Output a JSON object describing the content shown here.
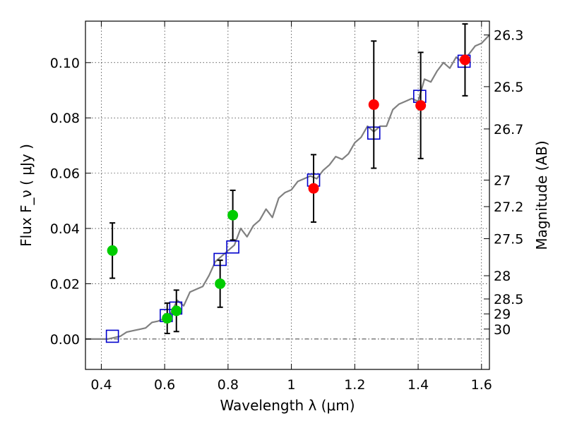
{
  "chart_data": {
    "type": "scatter",
    "title": "",
    "xlabel": "Wavelength  λ (μm)",
    "ylabel": "Flux  F_ν ( μJy )",
    "ylabel_right": "Magnitude (AB)",
    "xlim": [
      0.35,
      1.625
    ],
    "ylim": [
      -0.011,
      0.115
    ],
    "grid": true,
    "x_ticks": [
      0.4,
      0.6,
      0.8,
      1.0,
      1.2,
      1.4,
      1.6
    ],
    "x_tick_labels": [
      "0.4",
      "0.6",
      "0.8",
      "1",
      "1.2",
      "1.4",
      "1.6"
    ],
    "y_ticks": [
      0.0,
      0.02,
      0.04,
      0.06,
      0.08,
      0.1
    ],
    "y_tick_labels": [
      "0.00",
      "0.02",
      "0.04",
      "0.06",
      "0.08",
      "0.10"
    ],
    "right_ticks": [
      {
        "label": "26.3",
        "flux": 0.11
      },
      {
        "label": "26.5",
        "flux": 0.0913
      },
      {
        "label": "26.7",
        "flux": 0.076
      },
      {
        "label": "27",
        "flux": 0.0575
      },
      {
        "label": "27.2",
        "flux": 0.0479
      },
      {
        "label": "27.5",
        "flux": 0.0363
      },
      {
        "label": "28",
        "flux": 0.0229
      },
      {
        "label": "28.5",
        "flux": 0.0145
      },
      {
        "label": "29",
        "flux": 0.0091
      },
      {
        "label": "30",
        "flux": 0.0036
      }
    ],
    "series": [
      {
        "color": "#808080",
        "kind": "line",
        "x": [
          0.35,
          0.38,
          0.4,
          0.42,
          0.44,
          0.46,
          0.48,
          0.5,
          0.52,
          0.54,
          0.56,
          0.58,
          0.6,
          0.62,
          0.64,
          0.66,
          0.68,
          0.7,
          0.72,
          0.74,
          0.76,
          0.78,
          0.8,
          0.82,
          0.84,
          0.86,
          0.88,
          0.9,
          0.92,
          0.94,
          0.96,
          0.98,
          1.0,
          1.02,
          1.04,
          1.06,
          1.08,
          1.1,
          1.12,
          1.14,
          1.16,
          1.18,
          1.2,
          1.22,
          1.24,
          1.26,
          1.28,
          1.3,
          1.32,
          1.34,
          1.36,
          1.38,
          1.4,
          1.42,
          1.44,
          1.46,
          1.48,
          1.5,
          1.52,
          1.54,
          1.56,
          1.58,
          1.6,
          1.625
        ],
        "y": [
          0.0,
          0.0,
          0.0,
          0.0,
          0.0005,
          0.001,
          0.0025,
          0.003,
          0.0035,
          0.004,
          0.006,
          0.0065,
          0.0075,
          0.0095,
          0.014,
          0.012,
          0.017,
          0.018,
          0.019,
          0.023,
          0.028,
          0.03,
          0.032,
          0.034,
          0.04,
          0.037,
          0.041,
          0.043,
          0.047,
          0.044,
          0.051,
          0.053,
          0.054,
          0.057,
          0.058,
          0.059,
          0.058,
          0.061,
          0.063,
          0.066,
          0.065,
          0.067,
          0.071,
          0.073,
          0.077,
          0.075,
          0.077,
          0.077,
          0.083,
          0.085,
          0.086,
          0.087,
          0.086,
          0.094,
          0.093,
          0.097,
          0.1,
          0.098,
          0.102,
          0.1,
          0.103,
          0.106,
          0.107,
          0.11
        ]
      },
      {
        "color": "#0000cc",
        "kind": "open-square",
        "x": [
          0.435,
          0.605,
          0.635,
          0.775,
          0.815,
          1.07,
          1.26,
          1.405,
          1.545
        ],
        "y": [
          0.001,
          0.0085,
          0.0112,
          0.0288,
          0.0333,
          0.0575,
          0.0745,
          0.0878,
          0.1005
        ]
      },
      {
        "color": "#00cc00",
        "kind": "filled-circle",
        "x": [
          0.435,
          0.608,
          0.637,
          0.775,
          0.815
        ],
        "y": [
          0.032,
          0.0075,
          0.0102,
          0.02,
          0.0448
        ],
        "yerr": [
          0.01,
          0.0055,
          0.0075,
          0.0085,
          0.009
        ]
      },
      {
        "color": "#ff0000",
        "kind": "filled-circle",
        "x": [
          1.07,
          1.26,
          1.408,
          1.548
        ],
        "y": [
          0.0545,
          0.0848,
          0.0845,
          0.101
        ],
        "yerr": [
          0.0122,
          0.023,
          0.0192,
          0.013
        ]
      }
    ]
  }
}
